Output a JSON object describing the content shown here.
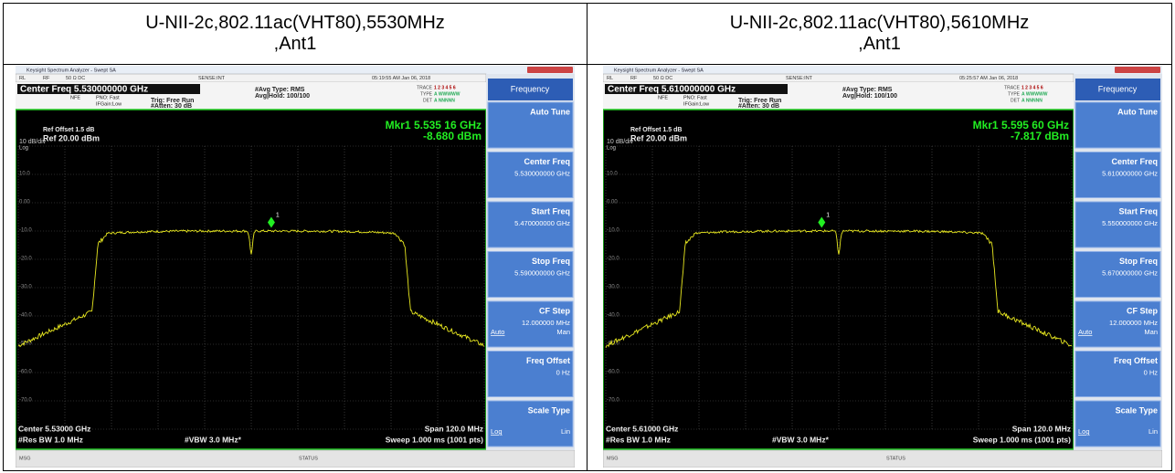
{
  "panels": [
    {
      "header": [
        "U-NII-2c,802.11ac(VHT80),5530MHz",
        ",Ant1"
      ],
      "window_title": "Keysight Spectrum Analyzer - Swept SA",
      "top_bar": [
        "RL",
        "RF",
        "50 Ω  DC",
        "SENSE:INT",
        "05:19:55 AM Jan 06, 2018"
      ],
      "center_freq_label": "Center Freq 5.530000000 GHz",
      "settings": [
        "NFE",
        "PNO: Fast",
        "IFGain:Low",
        "Trig: Free Run",
        "#Atten: 30 dB",
        "#Avg Type: RMS",
        "Avg|Hold: 100/100"
      ],
      "trace_info": [
        [
          "TRACE",
          "1 2 3 4 5 6"
        ],
        [
          "TYPE",
          "A WWWWW"
        ],
        [
          "DET",
          "A NNNNN"
        ]
      ],
      "ref_offset": "Ref Offset 1.5 dB",
      "scale": "10 dB/div",
      "ref_level": "Ref 20.00 dBm",
      "log": "Log",
      "marker_freq": "Mkr1 5.535 16 GHz",
      "marker_amp": "-8.680 dBm",
      "marker_id": "1",
      "y_labels": [
        "10.0",
        "0.00",
        "-10.0",
        "-20.0",
        "-30.0",
        "-40.0",
        "-50.0",
        "-60.0",
        "-70.0"
      ],
      "center": "Center 5.53000 GHz",
      "span": "Span 120.0 MHz",
      "rbw": "#Res BW 1.0 MHz",
      "vbw": "#VBW 3.0 MHz*",
      "sweep": "Sweep  1.000 ms (1001 pts)",
      "msg": "MSG",
      "status": "STATUS",
      "menu_title": "Frequency",
      "softkeys": [
        {
          "label": "Auto Tune"
        },
        {
          "label": "Center Freq",
          "value": "5.530000000 GHz"
        },
        {
          "label": "Start Freq",
          "value": "5.470000000 GHz"
        },
        {
          "label": "Stop Freq",
          "value": "5.590000000 GHz"
        },
        {
          "label": "CF Step",
          "value": "12.000000 MHz",
          "left": "Auto",
          "right": "Man"
        },
        {
          "label": "Freq Offset",
          "value": "0 Hz"
        },
        {
          "label": "Scale Type",
          "left": "Log",
          "right": "Lin"
        }
      ]
    },
    {
      "header": [
        "U-NII-2c,802.11ac(VHT80),5610MHz",
        ",Ant1"
      ],
      "window_title": "Keysight Spectrum Analyzer - Swept SA",
      "top_bar": [
        "RL",
        "RF",
        "50 Ω  DC",
        "SENSE:INT",
        "05:25:57 AM Jan 06, 2018"
      ],
      "center_freq_label": "Center Freq 5.610000000 GHz",
      "settings": [
        "NFE",
        "PNO: Fast",
        "IFGain:Low",
        "Trig: Free Run",
        "#Atten: 30 dB",
        "#Avg Type: RMS",
        "Avg|Hold: 100/100"
      ],
      "trace_info": [
        [
          "TRACE",
          "1 2 3 4 5 6"
        ],
        [
          "TYPE",
          "A WWWWW"
        ],
        [
          "DET",
          "A NNNNN"
        ]
      ],
      "ref_offset": "Ref Offset 1.5 dB",
      "scale": "10 dB/div",
      "ref_level": "Ref 20.00 dBm",
      "log": "Log",
      "marker_freq": "Mkr1 5.595 60 GHz",
      "marker_amp": "-7.817 dBm",
      "marker_id": "1",
      "y_labels": [
        "10.0",
        "0.00",
        "-10.0",
        "-20.0",
        "-30.0",
        "-40.0",
        "-50.0",
        "-60.0",
        "-70.0"
      ],
      "center": "Center 5.61000 GHz",
      "span": "Span 120.0 MHz",
      "rbw": "#Res BW 1.0 MHz",
      "vbw": "#VBW 3.0 MHz*",
      "sweep": "Sweep  1.000 ms (1001 pts)",
      "msg": "MSG",
      "status": "STATUS",
      "menu_title": "Frequency",
      "softkeys": [
        {
          "label": "Auto Tune"
        },
        {
          "label": "Center Freq",
          "value": "5.610000000 GHz"
        },
        {
          "label": "Start Freq",
          "value": "5.550000000 GHz"
        },
        {
          "label": "Stop Freq",
          "value": "5.670000000 GHz"
        },
        {
          "label": "CF Step",
          "value": "12.000000 MHz",
          "left": "Auto",
          "right": "Man"
        },
        {
          "label": "Freq Offset",
          "value": "0 Hz"
        },
        {
          "label": "Scale Type",
          "left": "Log",
          "right": "Lin"
        }
      ]
    }
  ]
}
